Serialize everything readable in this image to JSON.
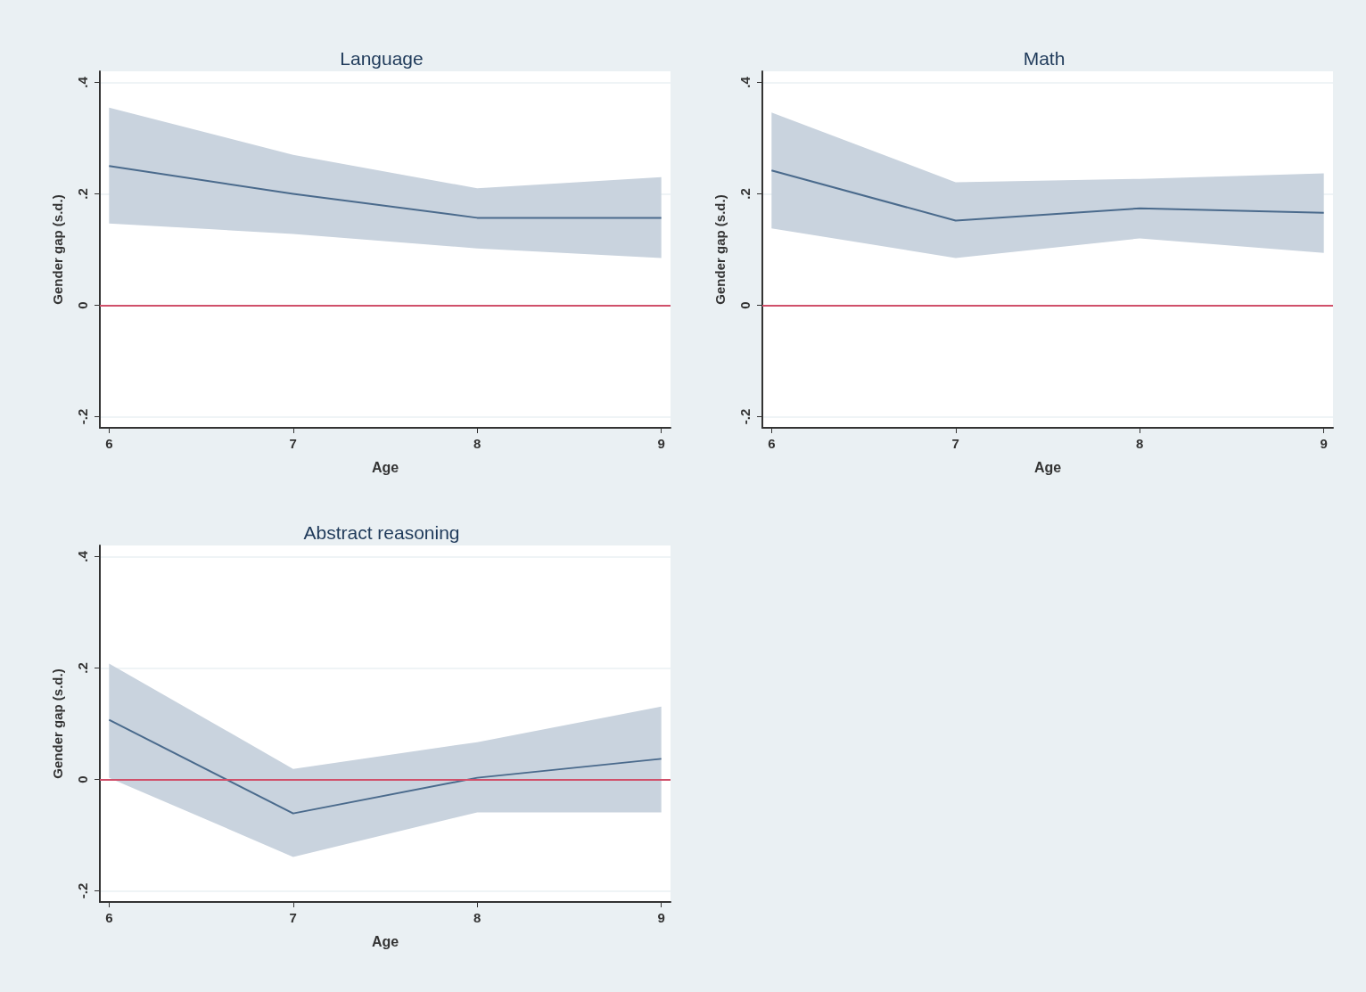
{
  "chart_data": [
    {
      "type": "line",
      "title": "Language",
      "xlabel": "Age",
      "ylabel": "Gender gap (s.d.)",
      "x": [
        6,
        7,
        8,
        9
      ],
      "xlim": [
        5.95,
        9.05
      ],
      "xticks": [
        6,
        7,
        8,
        9
      ],
      "ylim": [
        -0.22,
        0.42
      ],
      "yticks": [
        {
          "value": -0.2,
          "label": "-.2"
        },
        {
          "value": 0,
          "label": "0"
        },
        {
          "value": 0.2,
          "label": ".2"
        },
        {
          "value": 0.4,
          "label": ".4"
        }
      ],
      "grid": "y",
      "marker": "none",
      "line_style": "solid",
      "series": [
        {
          "color": "#4a6a8c",
          "values": [
            0.25,
            0.2,
            0.157,
            0.157
          ],
          "lower": [
            0.147,
            0.128,
            0.102,
            0.085
          ],
          "upper": [
            0.355,
            0.27,
            0.21,
            0.23
          ]
        }
      ],
      "ref_lines": [
        {
          "axis": "y",
          "value": 0,
          "label": null,
          "color": "#d0506a"
        }
      ]
    },
    {
      "type": "line",
      "title": "Math",
      "xlabel": "Age",
      "ylabel": "Gender gap (s.d.)",
      "x": [
        6,
        7,
        8,
        9
      ],
      "xlim": [
        5.95,
        9.05
      ],
      "xticks": [
        6,
        7,
        8,
        9
      ],
      "ylim": [
        -0.22,
        0.42
      ],
      "yticks": [
        {
          "value": -0.2,
          "label": "-.2"
        },
        {
          "value": 0,
          "label": "0"
        },
        {
          "value": 0.2,
          "label": ".2"
        },
        {
          "value": 0.4,
          "label": ".4"
        }
      ],
      "grid": "y",
      "marker": "none",
      "line_style": "solid",
      "series": [
        {
          "color": "#4a6a8c",
          "values": [
            0.242,
            0.152,
            0.174,
            0.166
          ],
          "lower": [
            0.138,
            0.085,
            0.12,
            0.094
          ],
          "upper": [
            0.346,
            0.221,
            0.227,
            0.237
          ]
        }
      ],
      "ref_lines": [
        {
          "axis": "y",
          "value": 0,
          "label": null,
          "color": "#d0506a"
        }
      ]
    },
    {
      "type": "line",
      "title": "Abstract reasoning",
      "xlabel": "Age",
      "ylabel": "Gender gap (s.d.)",
      "x": [
        6,
        7,
        8,
        9
      ],
      "xlim": [
        5.95,
        9.05
      ],
      "xticks": [
        6,
        7,
        8,
        9
      ],
      "ylim": [
        -0.22,
        0.42
      ],
      "yticks": [
        {
          "value": -0.2,
          "label": "-.2"
        },
        {
          "value": 0,
          "label": "0"
        },
        {
          "value": 0.2,
          "label": ".2"
        },
        {
          "value": 0.4,
          "label": ".4"
        }
      ],
      "grid": "y",
      "marker": "none",
      "line_style": "solid",
      "series": [
        {
          "color": "#4a6a8c",
          "values": [
            0.107,
            -0.061,
            0.003,
            0.037
          ],
          "lower": [
            0.003,
            -0.139,
            -0.059,
            -0.059
          ],
          "upper": [
            0.208,
            0.019,
            0.067,
            0.131
          ]
        }
      ],
      "ref_lines": [
        {
          "axis": "y",
          "value": 0,
          "label": null,
          "color": "#d0506a"
        }
      ]
    }
  ]
}
